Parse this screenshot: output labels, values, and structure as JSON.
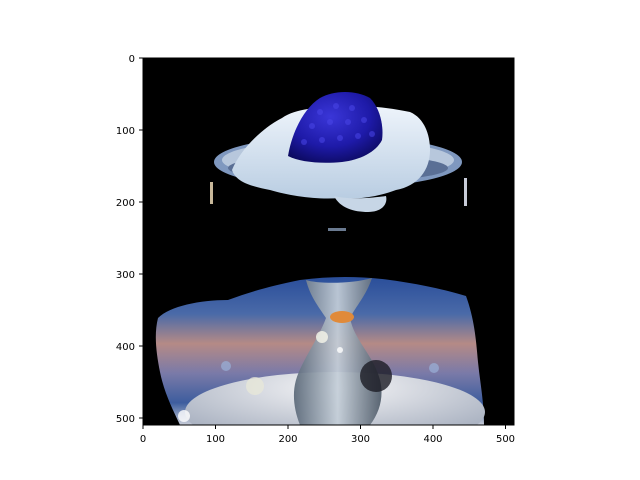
{
  "figure": {
    "background_color": "#ffffff",
    "image_background_color": "#000000",
    "frame_color": "#000000"
  },
  "axes": {
    "x_ticks": [
      "0",
      "100",
      "200",
      "300",
      "400",
      "500"
    ],
    "y_ticks": [
      "0",
      "100",
      "200",
      "300",
      "400",
      "500"
    ],
    "x_tick_values": [
      0,
      100,
      200,
      300,
      400,
      500
    ],
    "y_tick_values": [
      0,
      100,
      200,
      300,
      400,
      500
    ],
    "x_range": [
      0,
      512
    ],
    "y_range": [
      512,
      0
    ],
    "y_inverted": true,
    "grid": false
  },
  "image": {
    "subject": "masked photo: blue raspberry on whipped cream atop a glass dessert dish, black masked background",
    "colors": {
      "raspberry": "#1e1aa8",
      "cream": "#d8e6f2",
      "dish_rim": "#8aa4c8",
      "background_blur_peach": "#b58a86",
      "background_blur_blue": "#3d5d9e",
      "glass_stem": "#9aa9ba",
      "orange_highlight": "#e08a3a"
    }
  }
}
